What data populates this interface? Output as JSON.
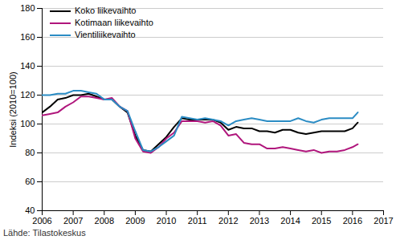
{
  "chart_data": {
    "type": "line",
    "y_label": "Indeksi (2010=100)",
    "source": "Lähde: Tilastokeskus",
    "x": [
      2006.0,
      2006.25,
      2006.5,
      2006.75,
      2007.0,
      2007.25,
      2007.5,
      2007.75,
      2008.0,
      2008.25,
      2008.5,
      2008.75,
      2009.0,
      2009.25,
      2009.5,
      2009.75,
      2010.0,
      2010.25,
      2010.5,
      2010.75,
      2011.0,
      2011.25,
      2011.5,
      2011.75,
      2012.0,
      2012.25,
      2012.5,
      2012.75,
      2013.0,
      2013.25,
      2013.5,
      2013.75,
      2014.0,
      2014.25,
      2014.5,
      2014.75,
      2015.0,
      2015.25,
      2015.5,
      2015.75,
      2016.0,
      2016.17
    ],
    "series": [
      {
        "name": "Koko liikevaihto",
        "color": "#000000",
        "values": [
          108,
          112,
          117,
          118,
          120,
          120,
          121,
          119,
          117,
          117,
          112,
          108,
          92,
          82,
          81,
          86,
          91,
          98,
          104,
          103,
          103,
          103,
          103,
          101,
          96,
          98,
          97,
          97,
          95,
          95,
          94,
          96,
          96,
          94,
          93,
          94,
          95,
          95,
          95,
          95,
          97,
          101
        ]
      },
      {
        "name": "Kotimaan liikevaihto",
        "color": "#b0167c",
        "values": [
          106,
          107,
          108,
          112,
          115,
          119,
          119,
          118,
          117,
          118,
          112,
          109,
          90,
          81,
          80,
          84,
          90,
          94,
          102,
          102,
          102,
          101,
          102,
          99,
          92,
          93,
          87,
          86,
          86,
          83,
          83,
          84,
          83,
          82,
          81,
          82,
          80,
          81,
          81,
          82,
          84,
          86
        ]
      },
      {
        "name": "Vientiliikevaihto",
        "color": "#2b8cc4",
        "values": [
          120,
          120,
          121,
          121,
          123,
          123,
          122,
          121,
          117,
          117,
          112,
          109,
          95,
          82,
          81,
          84,
          88,
          92,
          105,
          104,
          103,
          104,
          103,
          102,
          99,
          102,
          103,
          104,
          103,
          102,
          102,
          102,
          102,
          104,
          102,
          101,
          103,
          104,
          104,
          104,
          104,
          108
        ]
      }
    ],
    "xlim": [
      2006,
      2017
    ],
    "xticks": [
      2006,
      2007,
      2008,
      2009,
      2010,
      2011,
      2012,
      2013,
      2014,
      2015,
      2016,
      2017
    ],
    "ylim": [
      40,
      180
    ],
    "yticks": [
      40,
      60,
      80,
      100,
      120,
      140,
      160,
      180
    ],
    "grid": true,
    "legend": "top-left"
  }
}
